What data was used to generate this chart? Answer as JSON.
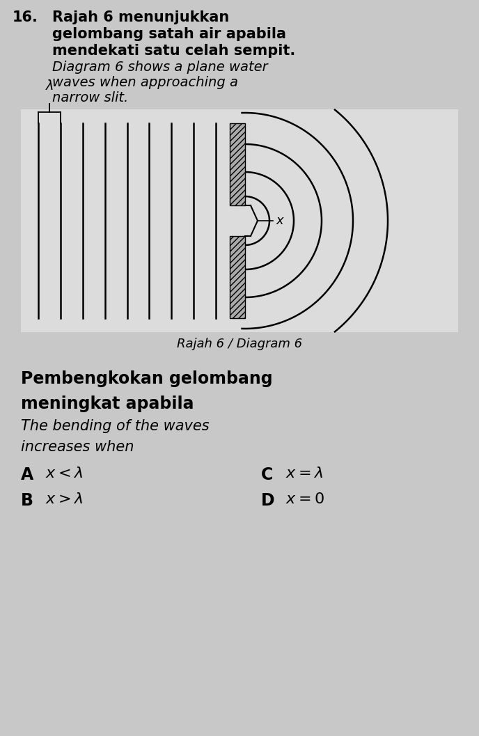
{
  "bg_color": "#c8c8c8",
  "page_bg": "#d0d0d0",
  "diagram_bg": "#e0e0e0",
  "text_color": "#000000",
  "question_number": "16.",
  "malay_text_line1": "Rajah 6 menunjukkan",
  "malay_text_line2": "gelombang satah air apabila",
  "malay_text_line3": "mendekati satu celah sempit.",
  "english_text_line1": "Diagram 6 shows a plane water",
  "english_text_line2": "waves when approaching a",
  "english_text_line3": "narrow slit.",
  "diagram_label": "Rajah 6 / Diagram 6",
  "question_malay_line1": "Pembengkokan gelombang",
  "question_malay_line2": "meningkat apabila",
  "question_english_line1": "The bending of the waves",
  "question_english_line2": "increases when",
  "option_A_label": "A",
  "option_B_label": "B",
  "option_C_label": "C",
  "option_D_label": "D",
  "num_wave_lines": 9,
  "barrier_hatch_color": "#999999",
  "arc_color": "#000000"
}
